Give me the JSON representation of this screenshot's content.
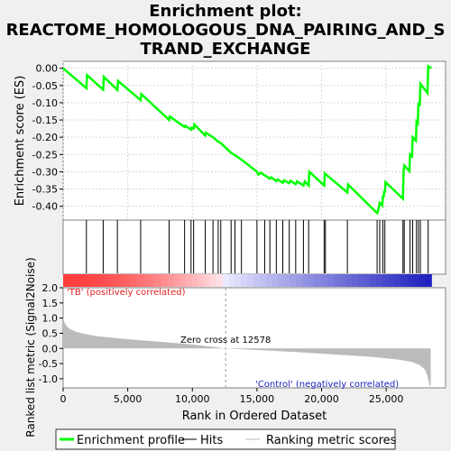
{
  "title_lines": [
    "Enrichment plot:",
    "REACTOME_HOMOLOGOUS_DNA_PAIRING_AND_S",
    "TRAND_EXCHANGE"
  ],
  "chart_data": {
    "type": "line",
    "x_label": "Rank in Ordered Dataset",
    "x_ticks": [
      0,
      5000,
      10000,
      15000,
      20000,
      25000
    ],
    "x_tick_labels": [
      "0",
      "5,000",
      "10,000",
      "15,000",
      "20,000",
      "25,000"
    ],
    "xlim": [
      0,
      29600
    ],
    "es_panel": {
      "ylabel": "Enrichment score (ES)",
      "ylim": [
        -0.44,
        0.02
      ],
      "y_ticks": [
        0.0,
        -0.05,
        -0.1,
        -0.15,
        -0.2,
        -0.25,
        -0.3,
        -0.35,
        -0.4
      ],
      "y_tick_labels": [
        "0.00",
        "-0.05",
        "-0.10",
        "-0.15",
        "-0.20",
        "-0.25",
        "-0.30",
        "-0.35",
        "-0.40"
      ],
      "grid": true,
      "series": {
        "name": "Enrichment profile",
        "color": "#00ff00",
        "points": [
          [
            0,
            0.0
          ],
          [
            1800,
            -0.058
          ],
          [
            1850,
            -0.02
          ],
          [
            3100,
            -0.062
          ],
          [
            3150,
            -0.025
          ],
          [
            4200,
            -0.063
          ],
          [
            4250,
            -0.037
          ],
          [
            6000,
            -0.092
          ],
          [
            6050,
            -0.075
          ],
          [
            8200,
            -0.15
          ],
          [
            8250,
            -0.14
          ],
          [
            9400,
            -0.17
          ],
          [
            9450,
            -0.167
          ],
          [
            9900,
            -0.178
          ],
          [
            9950,
            -0.172
          ],
          [
            10100,
            -0.175
          ],
          [
            10150,
            -0.163
          ],
          [
            11000,
            -0.195
          ],
          [
            11050,
            -0.187
          ],
          [
            11600,
            -0.2
          ],
          [
            12000,
            -0.213
          ],
          [
            12200,
            -0.217
          ],
          [
            13000,
            -0.245
          ],
          [
            13300,
            -0.252
          ],
          [
            13800,
            -0.265
          ],
          [
            15000,
            -0.3
          ],
          [
            15100,
            -0.308
          ],
          [
            15300,
            -0.303
          ],
          [
            15600,
            -0.31
          ],
          [
            16000,
            -0.32
          ],
          [
            16100,
            -0.316
          ],
          [
            16500,
            -0.327
          ],
          [
            16600,
            -0.322
          ],
          [
            17000,
            -0.332
          ],
          [
            17100,
            -0.325
          ],
          [
            17500,
            -0.333
          ],
          [
            17600,
            -0.326
          ],
          [
            18000,
            -0.336
          ],
          [
            18100,
            -0.328
          ],
          [
            18600,
            -0.34
          ],
          [
            18700,
            -0.328
          ],
          [
            19000,
            -0.34
          ],
          [
            19050,
            -0.3
          ],
          [
            20200,
            -0.34
          ],
          [
            20250,
            -0.305
          ],
          [
            22000,
            -0.36
          ],
          [
            22050,
            -0.337
          ],
          [
            24300,
            -0.42
          ],
          [
            24400,
            -0.41
          ],
          [
            24500,
            -0.39
          ],
          [
            24700,
            -0.398
          ],
          [
            24750,
            -0.37
          ],
          [
            24800,
            -0.375
          ],
          [
            24850,
            -0.355
          ],
          [
            24900,
            -0.36
          ],
          [
            24950,
            -0.33
          ],
          [
            26300,
            -0.378
          ],
          [
            26350,
            -0.3
          ],
          [
            26400,
            -0.282
          ],
          [
            26800,
            -0.298
          ],
          [
            26850,
            -0.25
          ],
          [
            27000,
            -0.255
          ],
          [
            27050,
            -0.2
          ],
          [
            27300,
            -0.21
          ],
          [
            27350,
            -0.155
          ],
          [
            27450,
            -0.16
          ],
          [
            27500,
            -0.1
          ],
          [
            27600,
            -0.11
          ],
          [
            27650,
            -0.045
          ],
          [
            28200,
            -0.072
          ],
          [
            28250,
            0.006
          ],
          [
            28500,
            0.0
          ]
        ]
      }
    },
    "hits_panel": {
      "positions": [
        1800,
        3100,
        4200,
        6000,
        8200,
        9400,
        9900,
        10100,
        11000,
        11600,
        12000,
        12200,
        13000,
        13300,
        13800,
        15000,
        15600,
        16000,
        16500,
        17000,
        17500,
        18000,
        18600,
        19000,
        20200,
        20300,
        22000,
        24300,
        24500,
        24750,
        24900,
        26300,
        26400,
        26850,
        27050,
        27350,
        27500,
        27650,
        28250
      ]
    },
    "color_bar": {
      "left_label": "'TB' (positively correlated)",
      "right_label": "'Control' (negatively correlated)",
      "positive_color": "#e03030",
      "negative_color": "#3030c0"
    },
    "metric_panel": {
      "ylabel": "Ranked list metric (Signal2Noise)",
      "ylim": [
        -1.3,
        2.0
      ],
      "y_ticks": [
        2.0,
        1.5,
        1.0,
        0.5,
        0.0,
        -0.5,
        -1.0
      ],
      "y_tick_labels": [
        "2.0",
        "1.5",
        "1.0",
        "0.5",
        "0.0",
        "-0.5",
        "-1.0"
      ],
      "zero_cross_label": "Zero cross at 12578",
      "zero_cross": 12578,
      "fill_color": "#bbbbbb",
      "profile": [
        [
          0,
          1.05
        ],
        [
          100,
          0.85
        ],
        [
          300,
          0.72
        ],
        [
          600,
          0.62
        ],
        [
          1000,
          0.55
        ],
        [
          1500,
          0.49
        ],
        [
          2500,
          0.41
        ],
        [
          4000,
          0.34
        ],
        [
          6000,
          0.27
        ],
        [
          8000,
          0.2
        ],
        [
          10000,
          0.13
        ],
        [
          12578,
          0.0
        ],
        [
          15000,
          -0.05
        ],
        [
          18000,
          -0.12
        ],
        [
          21000,
          -0.2
        ],
        [
          24000,
          -0.28
        ],
        [
          26000,
          -0.37
        ],
        [
          27000,
          -0.45
        ],
        [
          27600,
          -0.55
        ],
        [
          28000,
          -0.7
        ],
        [
          28200,
          -0.9
        ],
        [
          28350,
          -1.2
        ],
        [
          28450,
          -1.25
        ]
      ]
    },
    "legend": [
      {
        "label": "Enrichment profile",
        "color": "#00ff00"
      },
      {
        "label": "Hits",
        "color": "#000000"
      },
      {
        "label": "Ranking metric scores",
        "color": "#bbbbbb"
      }
    ]
  }
}
